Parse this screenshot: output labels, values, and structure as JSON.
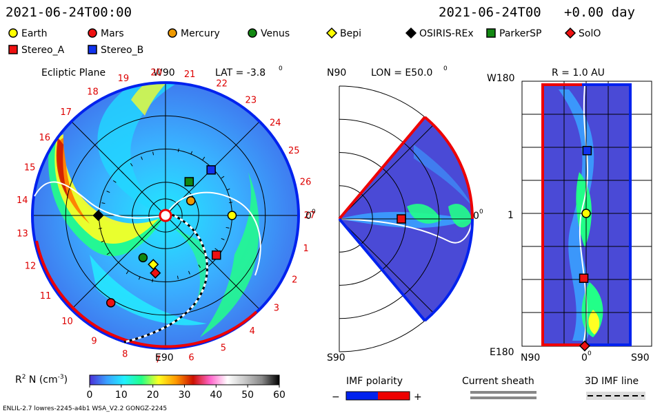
{
  "header": {
    "left_time": "2021-06-24T00:00",
    "right_time": "2021-06-24T00",
    "right_offset": "+0.00 day"
  },
  "legend": {
    "objects": [
      {
        "name": "Earth",
        "color": "#ffff00",
        "shape": "circle"
      },
      {
        "name": "Mars",
        "color": "#ee1111",
        "shape": "circle"
      },
      {
        "name": "Mercury",
        "color": "#ee9900",
        "shape": "circle"
      },
      {
        "name": "Venus",
        "color": "#118811",
        "shape": "circle"
      },
      {
        "name": "Bepi",
        "color": "#ffff00",
        "shape": "diamond"
      },
      {
        "name": "OSIRIS-REx",
        "color": "#000000",
        "shape": "diamond"
      },
      {
        "name": "ParkerSP",
        "color": "#118811",
        "shape": "square"
      },
      {
        "name": "SolO",
        "color": "#ee1111",
        "shape": "diamond"
      },
      {
        "name": "Stereo_A",
        "color": "#ee1111",
        "shape": "square"
      },
      {
        "name": "Stereo_B",
        "color": "#1133ee",
        "shape": "square"
      }
    ]
  },
  "panels": {
    "ecliptic": {
      "title": "Ecliptic Plane",
      "lat_label": "LAT = -3.8",
      "lat_degree": "0",
      "top_label": "W90",
      "bottom_label": "E90",
      "right_label": "0",
      "right_degree": "0",
      "carrington_sectors": [
        "19",
        "20",
        "21",
        "22",
        "23",
        "24",
        "25",
        "26",
        "27",
        "1",
        "2",
        "3",
        "4",
        "5",
        "6",
        "7",
        "8",
        "9",
        "10",
        "11",
        "12",
        "13",
        "14",
        "15",
        "16",
        "17",
        "18"
      ]
    },
    "meridional": {
      "top_label": "N90",
      "bottom_label": "S90",
      "lon_label": "LON = E50.0",
      "lon_degree": "0",
      "right_label": "0",
      "right_degree": "0"
    },
    "latlon": {
      "r_label": "R = 1.0 AU",
      "top_left": "W180",
      "bottom_left": "E180",
      "mid_left": "1",
      "x_left": "N90",
      "x_mid": "0",
      "x_mid_degree": "0",
      "x_right": "S90"
    }
  },
  "chart_data": {
    "type": "heatmap",
    "quantity": "R² N (cm⁻³)",
    "colorbar": {
      "label_base": "R",
      "label_sup": "2",
      "label_mid": " N (cm",
      "label_exp": "-3",
      "label_end": ")",
      "range": [
        0,
        60
      ],
      "ticks": [
        "0",
        "10",
        "20",
        "30",
        "40",
        "50",
        "60"
      ],
      "tick_values": [
        0,
        10,
        20,
        30,
        40,
        50,
        60
      ],
      "stops": [
        "#4a2fd6",
        "#3aa0ff",
        "#22f0ff",
        "#22ff88",
        "#ffff22",
        "#ff9a00",
        "#cc1100",
        "#ff66cc",
        "#ffffff",
        "#c8c8c8",
        "#888888",
        "#000000"
      ]
    },
    "objects_ecliptic": [
      {
        "name": "Earth",
        "angle_deg": 0,
        "r_au": 1.0
      },
      {
        "name": "Mercury",
        "angle_deg": 30,
        "r_au": 0.44
      },
      {
        "name": "Venus",
        "angle_deg": -118,
        "r_au": 0.72
      },
      {
        "name": "Mars",
        "angle_deg": -122,
        "r_au": 1.55
      },
      {
        "name": "ParkerSP",
        "angle_deg": 55,
        "r_au": 0.62
      },
      {
        "name": "Stereo_B",
        "angle_deg": 45,
        "r_au": 0.97
      },
      {
        "name": "Stereo_A",
        "angle_deg": -38,
        "r_au": 0.97
      },
      {
        "name": "Bepi",
        "angle_deg": -104,
        "r_au": 0.76
      },
      {
        "name": "SolO",
        "angle_deg": -100,
        "r_au": 0.88
      },
      {
        "name": "OSIRIS-REx",
        "angle_deg": 180,
        "r_au": 1.01
      }
    ],
    "objects_latlon": [
      {
        "name": "Stereo_B",
        "lon_deg": 90,
        "lat_deg": 2
      },
      {
        "name": "Earth",
        "lon_deg": 0,
        "lat_deg": 0
      },
      {
        "name": "Stereo_A",
        "lon_deg": -93,
        "lat_deg": -5
      },
      {
        "name": "SolO",
        "lon_deg": -190,
        "lat_deg": -3
      }
    ]
  },
  "imf": {
    "polarity_label": "IMF polarity",
    "neg_label": "−",
    "pos_label": "+",
    "neg_color": "#0022ee",
    "pos_color": "#ee0000",
    "sheath_label": "Current sheath",
    "line_label": "3D IMF line"
  },
  "footer": {
    "left": "ENLIL-2.7 lowres-2245-a4b1 WSA_V2.2 GONGZ-2245"
  }
}
